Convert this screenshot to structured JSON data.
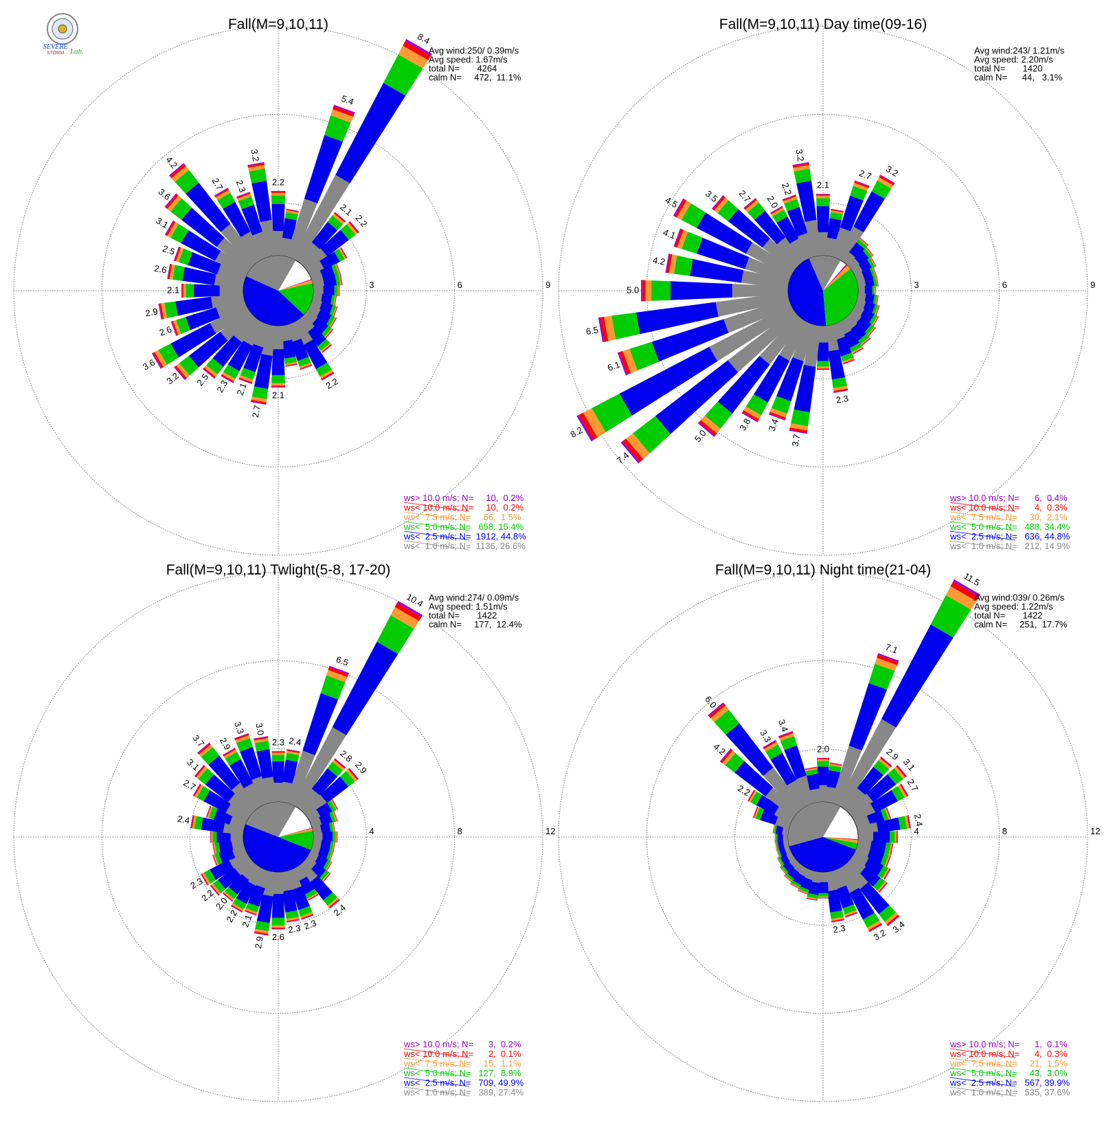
{
  "colors": {
    "gray": "#888888",
    "blue": "#0000ee",
    "green": "#00cc00",
    "orange": "#ff9933",
    "red": "#ff0000",
    "purple": "#9900cc",
    "ring": "#555555"
  },
  "logo": {
    "text_top": "SEVERE",
    "text_mid": "STORM",
    "text_lab": "Lab."
  },
  "chart_data": [
    {
      "type": "windrose",
      "title": "Fall(M=9,10,11)",
      "stats": [
        "Avg wind:250/ 0.39m/s",
        "Avg speed: 1.67m/s",
        "total N=       4264",
        "calm N=     472,  11.1%"
      ],
      "ring_labels": [
        "3",
        "6",
        "9"
      ],
      "rmax": 9,
      "legend": [
        {
          "text": "ws> 10.0 m/s; N=     10,  0.2%",
          "color": "purple"
        },
        {
          "text": "ws< 10.0 m/s; N=     10,  0.2%",
          "color": "red"
        },
        {
          "text": "ws<  7.5 m/s; N=     66,  1.5%",
          "color": "orange"
        },
        {
          "text": "ws<  5.0 m/s; N=   658, 15.4%",
          "color": "green"
        },
        {
          "text": "ws<  2.5 m/s; N=  1912, 44.8%",
          "color": "blue"
        },
        {
          "text": "ws<  1.0 m/s; N=  1136, 26.6%",
          "color": "gray"
        }
      ],
      "pie": [
        26.6,
        44.8,
        15.4,
        1.5,
        0.2,
        0.2
      ],
      "bars": [
        {
          "dir": 0,
          "v": 2.2,
          "label": "2.2"
        },
        {
          "dir": 10,
          "v": 1.6
        },
        {
          "dir": 20,
          "v": 5.4,
          "label": "5.4"
        },
        {
          "dir": 30,
          "v": 8.4,
          "label": "8.4"
        },
        {
          "dir": 40,
          "v": 2.1,
          "label": "2.1"
        },
        {
          "dir": 50,
          "v": 2.2,
          "label": "2.2"
        },
        {
          "dir": 60,
          "v": 1.4
        },
        {
          "dir": 70,
          "v": 1.0
        },
        {
          "dir": 80,
          "v": 1.0
        },
        {
          "dir": 90,
          "v": 0.9
        },
        {
          "dir": 100,
          "v": 0.8
        },
        {
          "dir": 110,
          "v": 0.9
        },
        {
          "dir": 120,
          "v": 1.0
        },
        {
          "dir": 130,
          "v": 1.1
        },
        {
          "dir": 140,
          "v": 1.4
        },
        {
          "dir": 150,
          "v": 2.2,
          "label": "2.2"
        },
        {
          "dir": 160,
          "v": 1.6
        },
        {
          "dir": 170,
          "v": 1.4
        },
        {
          "dir": 180,
          "v": 2.1,
          "label": "2.1"
        },
        {
          "dir": 190,
          "v": 2.7,
          "label": "2.7"
        },
        {
          "dir": 200,
          "v": 2.1,
          "label": "2.1"
        },
        {
          "dir": 210,
          "v": 2.3,
          "label": "2.3"
        },
        {
          "dir": 220,
          "v": 2.5,
          "label": "2.5"
        },
        {
          "dir": 230,
          "v": 3.2,
          "label": "3.2"
        },
        {
          "dir": 240,
          "v": 3.6,
          "label": "3.6"
        },
        {
          "dir": 250,
          "v": 2.6,
          "label": "2.6"
        },
        {
          "dir": 260,
          "v": 2.9,
          "label": "2.9"
        },
        {
          "dir": 270,
          "v": 2.1,
          "label": "2.1"
        },
        {
          "dir": 280,
          "v": 2.6,
          "label": "2.6"
        },
        {
          "dir": 290,
          "v": 2.5,
          "label": "2.5"
        },
        {
          "dir": 300,
          "v": 3.1,
          "label": "3.1"
        },
        {
          "dir": 310,
          "v": 3.6,
          "label": "3.6"
        },
        {
          "dir": 320,
          "v": 4.2,
          "label": "4.2"
        },
        {
          "dir": 330,
          "v": 2.7,
          "label": "2.7"
        },
        {
          "dir": 340,
          "v": 2.3,
          "label": "2.3"
        },
        {
          "dir": 350,
          "v": 3.2,
          "label": "3.2"
        }
      ]
    },
    {
      "type": "windrose",
      "title": "Fall(M=9,10,11) Day time(09-16)",
      "stats": [
        "Avg wind:243/ 1.21m/s",
        "Avg speed: 2.20m/s",
        "total N=       1420",
        "calm N=      44,   3.1%"
      ],
      "ring_labels": [
        "3",
        "6",
        "9"
      ],
      "rmax": 9,
      "legend": [
        {
          "text": "ws> 10.0 m/s; N=      6,  0.4%",
          "color": "purple"
        },
        {
          "text": "ws< 10.0 m/s; N=      4,  0.3%",
          "color": "red"
        },
        {
          "text": "ws<  7.5 m/s; N=     30,  2.1%",
          "color": "orange"
        },
        {
          "text": "ws<  5.0 m/s; N=   488, 34.4%",
          "color": "green"
        },
        {
          "text": "ws<  2.5 m/s; N=   636, 44.8%",
          "color": "blue"
        },
        {
          "text": "ws<  1.0 m/s; N=   212, 14.9%",
          "color": "gray"
        }
      ],
      "pie": [
        14.9,
        44.8,
        34.4,
        2.1,
        0.3,
        0.4
      ],
      "bars": [
        {
          "dir": 0,
          "v": 2.1,
          "label": "2.1"
        },
        {
          "dir": 10,
          "v": 1.6
        },
        {
          "dir": 20,
          "v": 2.7,
          "label": "2.7"
        },
        {
          "dir": 30,
          "v": 3.2,
          "label": "3.2"
        },
        {
          "dir": 40,
          "v": 1.0
        },
        {
          "dir": 50,
          "v": 0.9
        },
        {
          "dir": 60,
          "v": 0.8
        },
        {
          "dir": 70,
          "v": 0.7
        },
        {
          "dir": 80,
          "v": 0.7
        },
        {
          "dir": 90,
          "v": 0.6
        },
        {
          "dir": 100,
          "v": 0.7
        },
        {
          "dir": 110,
          "v": 0.8
        },
        {
          "dir": 120,
          "v": 0.9
        },
        {
          "dir": 130,
          "v": 1.0
        },
        {
          "dir": 140,
          "v": 1.1
        },
        {
          "dir": 150,
          "v": 1.2
        },
        {
          "dir": 160,
          "v": 1.4
        },
        {
          "dir": 170,
          "v": 2.3,
          "label": "2.3"
        },
        {
          "dir": 180,
          "v": 1.5
        },
        {
          "dir": 190,
          "v": 3.7,
          "label": "3.7"
        },
        {
          "dir": 200,
          "v": 3.4,
          "label": "3.4"
        },
        {
          "dir": 210,
          "v": 3.8,
          "label": "3.8"
        },
        {
          "dir": 220,
          "v": 5.0,
          "label": "5.0"
        },
        {
          "dir": 230,
          "v": 7.4,
          "label": "7.4"
        },
        {
          "dir": 240,
          "v": 8.2,
          "label": "8.2"
        },
        {
          "dir": 250,
          "v": 6.1,
          "label": "6.1"
        },
        {
          "dir": 260,
          "v": 6.5,
          "label": "6.5"
        },
        {
          "dir": 270,
          "v": 5.0,
          "label": "5.0"
        },
        {
          "dir": 280,
          "v": 4.2,
          "label": "4.2"
        },
        {
          "dir": 290,
          "v": 4.1,
          "label": "4.1"
        },
        {
          "dir": 300,
          "v": 4.5,
          "label": "4.5"
        },
        {
          "dir": 310,
          "v": 3.5,
          "label": "3.5"
        },
        {
          "dir": 320,
          "v": 2.7,
          "label": "2.7"
        },
        {
          "dir": 330,
          "v": 2.0,
          "label": "2.0"
        },
        {
          "dir": 340,
          "v": 2.2,
          "label": "2.2"
        },
        {
          "dir": 350,
          "v": 3.2,
          "label": "3.2"
        }
      ]
    },
    {
      "type": "windrose",
      "title": "Fall(M=9,10,11) Twlight(5-8, 17-20)",
      "stats": [
        "Avg wind:274/ 0.09m/s",
        "Avg speed: 1.51m/s",
        "total N=       1422",
        "calm N=     177,  12.4%"
      ],
      "ring_labels": [
        "4",
        "8",
        "12"
      ],
      "rmax": 12,
      "legend": [
        {
          "text": "ws> 10.0 m/s; N=      3,  0.2%",
          "color": "purple"
        },
        {
          "text": "ws< 10.0 m/s; N=      2,  0.1%",
          "color": "red"
        },
        {
          "text": "ws<  7.5 m/s; N=     15,  1.1%",
          "color": "orange"
        },
        {
          "text": "ws<  5.0 m/s; N=   127,  8.9%",
          "color": "green"
        },
        {
          "text": "ws<  2.5 m/s; N=   709, 49.9%",
          "color": "blue"
        },
        {
          "text": "ws<  1.0 m/s; N=   389, 27.4%",
          "color": "gray"
        }
      ],
      "pie": [
        27.4,
        49.9,
        8.9,
        1.1,
        0.1,
        0.2
      ],
      "bars": [
        {
          "dir": 0,
          "v": 2.3,
          "label": "2.3"
        },
        {
          "dir": 10,
          "v": 2.4,
          "label": "2.4"
        },
        {
          "dir": 20,
          "v": 6.5,
          "label": "6.5"
        },
        {
          "dir": 30,
          "v": 10.4,
          "label": "10.4"
        },
        {
          "dir": 40,
          "v": 2.8,
          "label": "2.8"
        },
        {
          "dir": 50,
          "v": 2.9,
          "label": "2.9"
        },
        {
          "dir": 60,
          "v": 1.4
        },
        {
          "dir": 70,
          "v": 1.2
        },
        {
          "dir": 80,
          "v": 1.0
        },
        {
          "dir": 90,
          "v": 1.1
        },
        {
          "dir": 100,
          "v": 1.0
        },
        {
          "dir": 110,
          "v": 1.0
        },
        {
          "dir": 120,
          "v": 1.1
        },
        {
          "dir": 130,
          "v": 1.3
        },
        {
          "dir": 140,
          "v": 2.4,
          "label": "2.4"
        },
        {
          "dir": 150,
          "v": 1.6
        },
        {
          "dir": 160,
          "v": 2.3,
          "label": "2.3"
        },
        {
          "dir": 170,
          "v": 2.3,
          "label": "2.3"
        },
        {
          "dir": 180,
          "v": 2.6,
          "label": "2.6"
        },
        {
          "dir": 190,
          "v": 2.9,
          "label": "2.9"
        },
        {
          "dir": 200,
          "v": 2.1,
          "label": "2.1"
        },
        {
          "dir": 210,
          "v": 2.2,
          "label": "2.2"
        },
        {
          "dir": 220,
          "v": 2.0,
          "label": "2.0"
        },
        {
          "dir": 230,
          "v": 2.2,
          "label": "2.2"
        },
        {
          "dir": 240,
          "v": 2.3,
          "label": "2.3"
        },
        {
          "dir": 250,
          "v": 1.5
        },
        {
          "dir": 260,
          "v": 1.4
        },
        {
          "dir": 270,
          "v": 1.5
        },
        {
          "dir": 280,
          "v": 2.4,
          "label": "2.4"
        },
        {
          "dir": 290,
          "v": 1.8
        },
        {
          "dir": 300,
          "v": 2.7,
          "label": "2.7"
        },
        {
          "dir": 310,
          "v": 3.1,
          "label": "3.1"
        },
        {
          "dir": 320,
          "v": 3.7,
          "label": "3.7"
        },
        {
          "dir": 330,
          "v": 2.9,
          "label": "2.9"
        },
        {
          "dir": 340,
          "v": 3.3,
          "label": "3.3"
        },
        {
          "dir": 350,
          "v": 3.0,
          "label": "3.0"
        }
      ]
    },
    {
      "type": "windrose",
      "title": "Fall(M=9,10,11) Night time(21-04)",
      "stats": [
        "Avg wind:039/ 0.26m/s",
        "Avg speed: 1.22m/s",
        "total N=       1422",
        "calm N=     251,  17.7%"
      ],
      "ring_labels": [
        "4",
        "8",
        "12"
      ],
      "rmax": 12,
      "legend": [
        {
          "text": "ws> 10.0 m/s; N=      1,  0.1%",
          "color": "purple"
        },
        {
          "text": "ws< 10.0 m/s; N=      4,  0.3%",
          "color": "red"
        },
        {
          "text": "ws<  7.5 m/s; N=     21,  1.5%",
          "color": "orange"
        },
        {
          "text": "ws<  5.0 m/s; N=     43,  3.0%",
          "color": "green"
        },
        {
          "text": "ws<  2.5 m/s; N=   567, 39.9%",
          "color": "blue"
        },
        {
          "text": "ws<  1.0 m/s; N=   535, 37.6%",
          "color": "gray"
        }
      ],
      "pie": [
        37.6,
        39.9,
        3.0,
        1.5,
        0.3,
        0.1
      ],
      "bars": [
        {
          "dir": 0,
          "v": 2.0,
          "label": "2.0"
        },
        {
          "dir": 10,
          "v": 1.8
        },
        {
          "dir": 20,
          "v": 7.1,
          "label": "7.1"
        },
        {
          "dir": 30,
          "v": 11.5,
          "label": "11.5"
        },
        {
          "dir": 40,
          "v": 2.9,
          "label": "2.9"
        },
        {
          "dir": 50,
          "v": 3.1,
          "label": "3.1"
        },
        {
          "dir": 60,
          "v": 2.7,
          "label": "2.7"
        },
        {
          "dir": 70,
          "v": 1.6
        },
        {
          "dir": 80,
          "v": 2.4,
          "label": "2.4"
        },
        {
          "dir": 90,
          "v": 1.8
        },
        {
          "dir": 100,
          "v": 1.6
        },
        {
          "dir": 110,
          "v": 1.6
        },
        {
          "dir": 120,
          "v": 1.8
        },
        {
          "dir": 130,
          "v": 2.0
        },
        {
          "dir": 140,
          "v": 3.4,
          "label": "3.4"
        },
        {
          "dir": 150,
          "v": 3.2,
          "label": "3.2"
        },
        {
          "dir": 160,
          "v": 2.2
        },
        {
          "dir": 170,
          "v": 2.3,
          "label": "2.3"
        },
        {
          "dir": 180,
          "v": 1.2
        },
        {
          "dir": 190,
          "v": 1.3
        },
        {
          "dir": 200,
          "v": 1.1
        },
        {
          "dir": 210,
          "v": 1.0
        },
        {
          "dir": 220,
          "v": 0.9
        },
        {
          "dir": 230,
          "v": 0.8
        },
        {
          "dir": 240,
          "v": 0.7
        },
        {
          "dir": 250,
          "v": 0.6
        },
        {
          "dir": 260,
          "v": 0.6
        },
        {
          "dir": 270,
          "v": 0.6
        },
        {
          "dir": 280,
          "v": 0.7
        },
        {
          "dir": 290,
          "v": 1.7
        },
        {
          "dir": 300,
          "v": 2.2,
          "label": "2.2"
        },
        {
          "dir": 310,
          "v": 4.2,
          "label": "4.2"
        },
        {
          "dir": 320,
          "v": 6.0,
          "label": "6.0"
        },
        {
          "dir": 330,
          "v": 3.3,
          "label": "3.3"
        },
        {
          "dir": 340,
          "v": 3.4,
          "label": "3.4"
        },
        {
          "dir": 350,
          "v": 1.6
        }
      ]
    }
  ]
}
